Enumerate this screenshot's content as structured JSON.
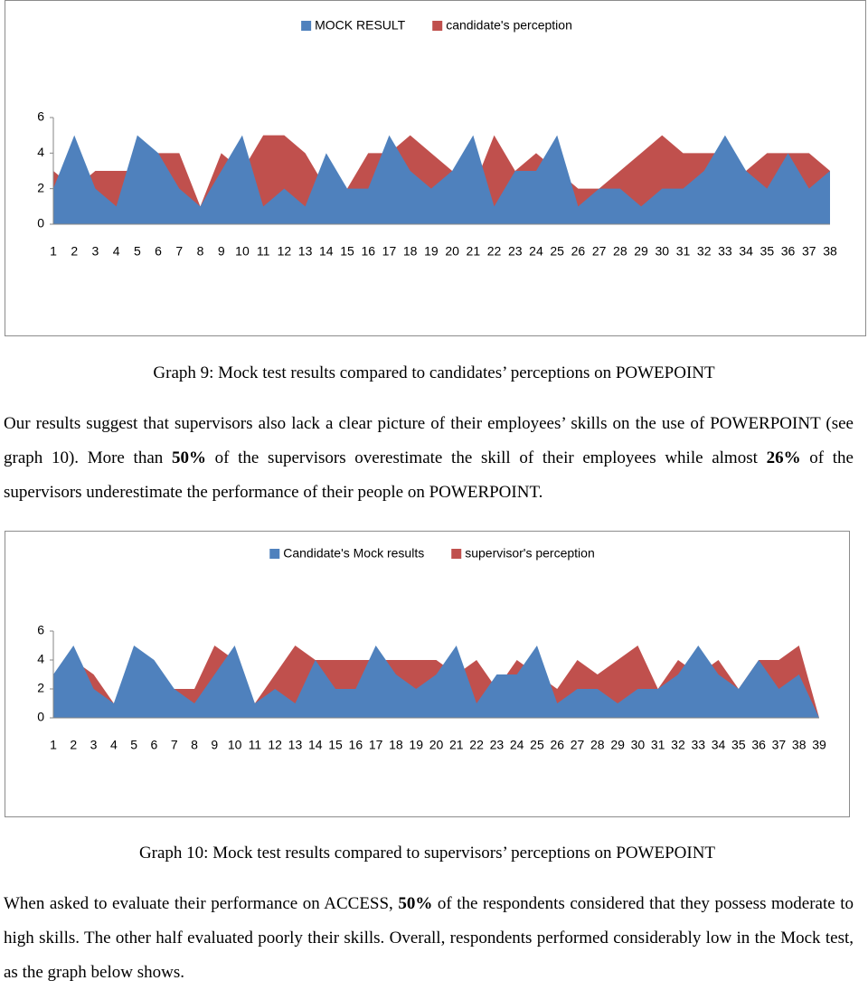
{
  "chart_data": [
    {
      "type": "area",
      "categories": [
        "1",
        "2",
        "3",
        "4",
        "5",
        "6",
        "7",
        "8",
        "9",
        "10",
        "11",
        "12",
        "13",
        "14",
        "15",
        "16",
        "17",
        "18",
        "19",
        "20",
        "21",
        "22",
        "23",
        "24",
        "25",
        "26",
        "27",
        "28",
        "29",
        "30",
        "31",
        "32",
        "33",
        "34",
        "35",
        "36",
        "37",
        "38"
      ],
      "series": [
        {
          "name": "MOCK RESULT",
          "color": "#4f81bd",
          "values": [
            2,
            5,
            2,
            1,
            5,
            4,
            2,
            1,
            3,
            5,
            1,
            2,
            1,
            4,
            2,
            2,
            5,
            3,
            2,
            3,
            5,
            1,
            3,
            3,
            5,
            1,
            2,
            2,
            1,
            2,
            2,
            3,
            5,
            3,
            2,
            4,
            2,
            3
          ]
        },
        {
          "name": "candidate's perception",
          "color": "#c0504d",
          "values": [
            3,
            2,
            3,
            3,
            3,
            4,
            4,
            1,
            4,
            3,
            5,
            5,
            4,
            2,
            2,
            4,
            4,
            5,
            4,
            3,
            2,
            5,
            3,
            4,
            3,
            2,
            2,
            3,
            4,
            5,
            4,
            4,
            4,
            3,
            4,
            4,
            4,
            3
          ]
        }
      ],
      "ylim": [
        0,
        6
      ],
      "yticks": [
        0,
        2,
        4,
        6
      ],
      "caption": "Graph 9: Mock test results compared to candidates’ perceptions on POWEPOINT"
    },
    {
      "type": "area",
      "categories": [
        "1",
        "2",
        "3",
        "4",
        "5",
        "6",
        "7",
        "8",
        "9",
        "10",
        "11",
        "12",
        "13",
        "14",
        "15",
        "16",
        "17",
        "18",
        "19",
        "20",
        "21",
        "22",
        "23",
        "24",
        "25",
        "26",
        "27",
        "28",
        "29",
        "30",
        "31",
        "32",
        "33",
        "34",
        "35",
        "36",
        "37",
        "38",
        "39"
      ],
      "series": [
        {
          "name": "Candidate's Mock results",
          "color": "#4f81bd",
          "values": [
            3,
            5,
            2,
            1,
            5,
            4,
            2,
            1,
            3,
            5,
            1,
            2,
            1,
            4,
            2,
            2,
            5,
            3,
            2,
            3,
            5,
            1,
            3,
            3,
            5,
            1,
            2,
            2,
            1,
            2,
            2,
            3,
            5,
            3,
            2,
            4,
            2,
            3,
            0
          ]
        },
        {
          "name": "supervisor's perception",
          "color": "#c0504d",
          "values": [
            3,
            4,
            3,
            1,
            4,
            3,
            2,
            2,
            5,
            4,
            1,
            3,
            5,
            4,
            4,
            4,
            4,
            4,
            4,
            4,
            3,
            4,
            2,
            4,
            3,
            2,
            4,
            3,
            4,
            5,
            2,
            4,
            3,
            4,
            2,
            4,
            4,
            5,
            0
          ]
        }
      ],
      "ylim": [
        0,
        6
      ],
      "yticks": [
        0,
        2,
        4,
        6
      ],
      "caption": "Graph 10: Mock test results compared to supervisors’ perceptions on POWEPOINT"
    }
  ],
  "document": {
    "paragraphs": [
      [
        "Our results suggest that supervisors also lack a clear picture of their employees’ skills on the use of POWERPOINT (see graph 10). More than ",
        "50%",
        " of the supervisors overestimate the skill of their employees while almost ",
        "26%",
        " of the supervisors underestimate the performance of their people on POWERPOINT."
      ],
      [
        "When asked to evaluate their performance on ACCESS, ",
        "50%",
        " of the respondents considered that they possess moderate to high skills. The other half evaluated poorly their skills. Overall, respondents performed considerably low in the Mock test, as the graph below shows."
      ]
    ]
  }
}
